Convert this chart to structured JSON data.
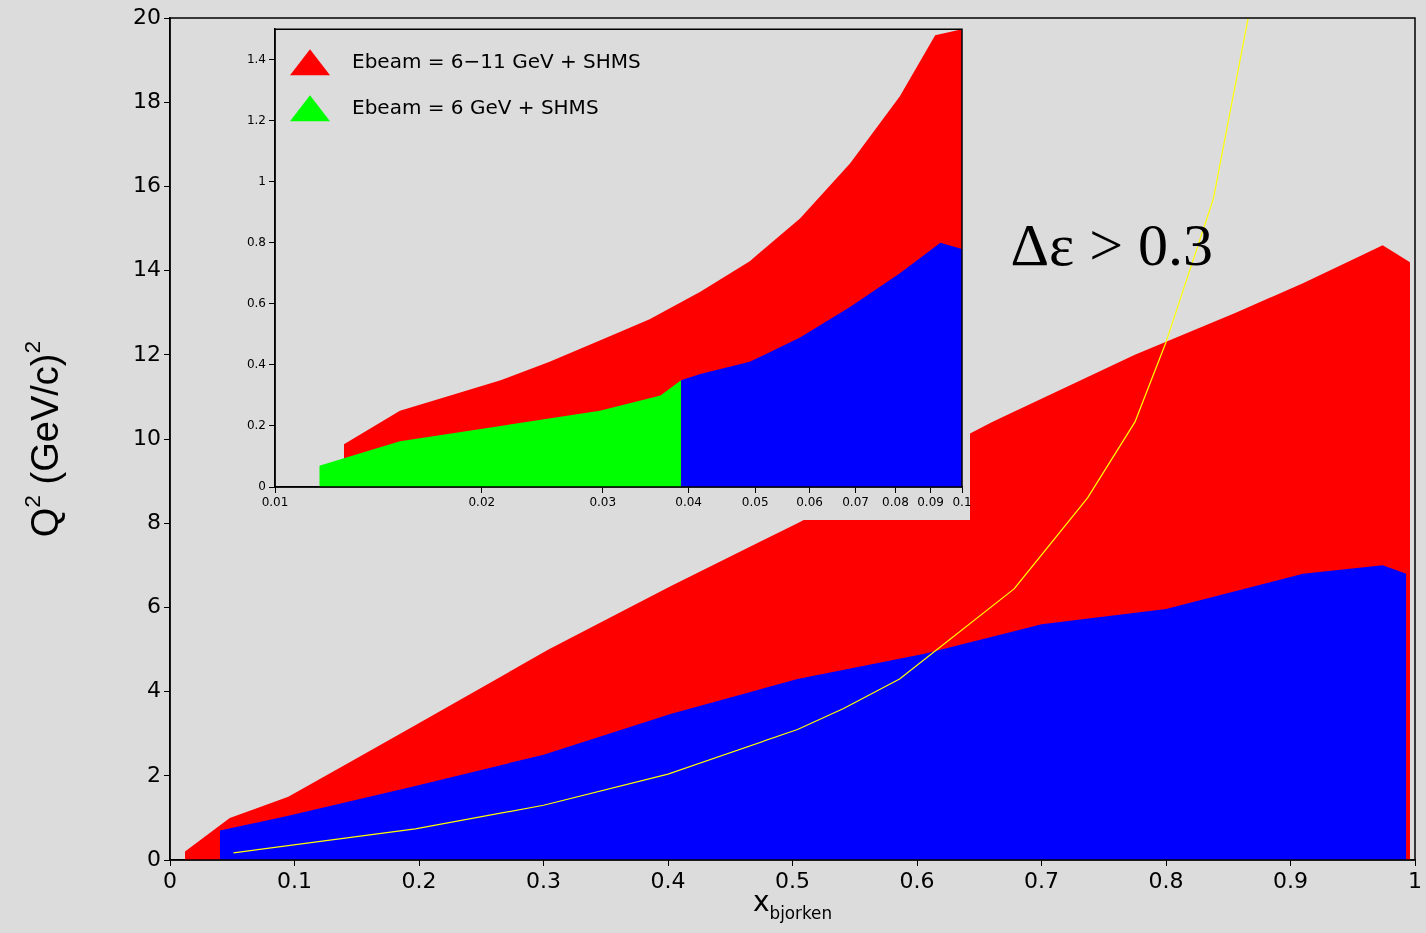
{
  "chart_data": [
    {
      "type": "area",
      "xlabel": "x$_{bjorken}$",
      "ylabel": "Q$^{2}$ (GeV/c)$^{2}$",
      "xlim": [
        0,
        1
      ],
      "ylim": [
        0,
        20
      ],
      "xticks": [
        0,
        0.1,
        0.2,
        0.3,
        0.4,
        0.5,
        0.6,
        0.7,
        0.8,
        0.9,
        1
      ],
      "yticks": [
        0,
        2,
        4,
        6,
        8,
        10,
        12,
        14,
        16,
        18,
        20
      ],
      "grid": false,
      "legend": false,
      "annotations": [
        "Δε > 0.3"
      ],
      "series": [
        {
          "color": "#ff0000",
          "x": [
            0.012,
            0.048,
            0.095,
            0.197,
            0.304,
            0.402,
            0.504,
            0.66,
            0.775,
            0.856,
            0.91,
            0.974,
            0.996
          ],
          "values": [
            0.2,
            1.0,
            1.5,
            3.2,
            5.0,
            6.5,
            8.0,
            10.4,
            12.0,
            13.0,
            13.7,
            14.6,
            14.2
          ]
        },
        {
          "color": "#0000ff",
          "x": [
            0.04,
            0.095,
            0.197,
            0.3,
            0.402,
            0.504,
            0.606,
            0.7,
            0.8,
            0.91,
            0.974,
            0.993
          ],
          "values": [
            0.7,
            1.05,
            1.76,
            2.5,
            3.47,
            4.3,
            4.9,
            5.6,
            5.96,
            6.8,
            7.0,
            6.8
          ]
        },
        {
          "type": "line",
          "color": "#ffff00",
          "x": [
            0.051,
            0.197,
            0.3,
            0.4,
            0.504,
            0.541,
            0.586,
            0.678,
            0.737,
            0.775,
            0.8,
            0.838,
            0.866
          ],
          "values": [
            0.17,
            0.74,
            1.3,
            2.04,
            3.1,
            3.6,
            4.3,
            6.44,
            8.6,
            10.4,
            12.3,
            15.7,
            20
          ]
        }
      ]
    },
    {
      "type": "area",
      "log": "x",
      "xlim": [
        0.01,
        0.1
      ],
      "ylim": [
        0,
        1.5
      ],
      "xticks": [
        0.01,
        0.02,
        0.03,
        0.04,
        0.05,
        0.06,
        0.07,
        0.08,
        0.09,
        0.1
      ],
      "yticks": [
        0,
        0.2,
        0.4,
        0.6,
        0.8,
        1,
        1.2,
        1.4
      ],
      "grid": false,
      "legend": "top left",
      "series": [
        {
          "name": "Ebeam = 6−11 GeV + SHMS",
          "color": "#ff0000",
          "x": [
            0.0126,
            0.0152,
            0.018,
            0.0213,
            0.0251,
            0.0297,
            0.0351,
            0.0416,
            0.0491,
            0.0581,
            0.0687,
            0.0812,
            0.0914,
            0.1
          ],
          "values": [
            0.14,
            0.25,
            0.3,
            0.35,
            0.41,
            0.48,
            0.55,
            0.64,
            0.74,
            0.88,
            1.06,
            1.28,
            1.48,
            1.5
          ]
        },
        {
          "name": "Ebeam = 6 GeV + SHMS",
          "color": "#00ff00",
          "x": [
            0.0116,
            0.0152,
            0.0213,
            0.0297,
            0.0364,
            0.039
          ],
          "values": [
            0.07,
            0.15,
            0.2,
            0.25,
            0.3,
            0.35
          ]
        },
        {
          "color": "#0000ff",
          "x": [
            0.039,
            0.0416,
            0.0491,
            0.0581,
            0.0687,
            0.0812,
            0.093,
            0.1
          ],
          "values": [
            0.35,
            0.37,
            0.41,
            0.49,
            0.59,
            0.7,
            0.8,
            0.78
          ]
        }
      ]
    }
  ]
}
